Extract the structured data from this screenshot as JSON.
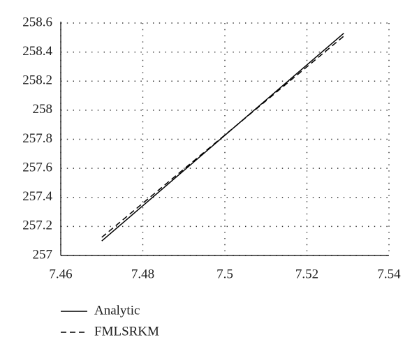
{
  "chart_data": {
    "type": "line",
    "x": [
      7.47,
      7.529
    ],
    "series": [
      {
        "name": "Analytic",
        "color": "#000000",
        "line_style": "solid",
        "values": [
          257.1,
          258.53
        ]
      },
      {
        "name": "FMLSRKM",
        "color": "#000000",
        "line_style": "dashed",
        "values": [
          257.125,
          258.51
        ]
      }
    ],
    "xlim": [
      7.46,
      7.54
    ],
    "xticks": [
      7.46,
      7.48,
      7.5,
      7.52,
      7.54
    ],
    "ylim": [
      257,
      258.6
    ],
    "yticks": [
      257,
      257.2,
      257.4,
      257.6,
      257.8,
      258,
      258.2,
      258.4,
      258.6
    ],
    "grid": true,
    "legend": "bottom-left"
  }
}
